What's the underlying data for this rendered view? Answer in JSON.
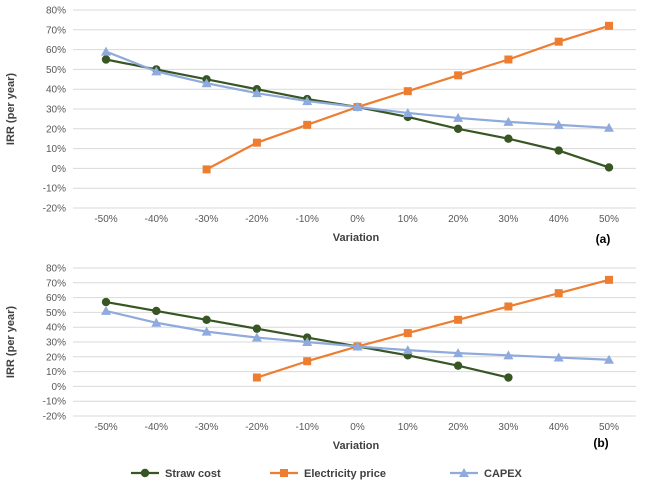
{
  "chart_data": [
    {
      "type": "line",
      "panel_label": "(a)",
      "xlabel": "Variation",
      "ylabel": "IRR (per year)",
      "categories": [
        "-50%",
        "-40%",
        "-30%",
        "-20%",
        "-10%",
        "0%",
        "10%",
        "20%",
        "30%",
        "40%",
        "50%"
      ],
      "ylim": [
        -20,
        80
      ],
      "y_ticks": [
        "-20%",
        "-10%",
        "0%",
        "10%",
        "20%",
        "30%",
        "40%",
        "50%",
        "60%",
        "70%",
        "80%"
      ],
      "grid": true,
      "series": [
        {
          "name": "Straw cost",
          "color": "#375623",
          "marker": "circle",
          "values": [
            55,
            50,
            45,
            40,
            35,
            31,
            26,
            20,
            15,
            9,
            0.5
          ]
        },
        {
          "name": "Electricity price",
          "color": "#ED7D31",
          "marker": "square",
          "values": [
            null,
            null,
            -0.5,
            13,
            22,
            31,
            39,
            47,
            55,
            64,
            72
          ]
        },
        {
          "name": "CAPEX",
          "color": "#8FAADC",
          "marker": "triangle",
          "values": [
            59,
            49,
            43,
            38,
            34,
            31,
            28,
            25.5,
            23.5,
            22,
            20.5
          ]
        }
      ]
    },
    {
      "type": "line",
      "panel_label": "(b)",
      "xlabel": "Variation",
      "ylabel": "IRR (per year)",
      "categories": [
        "-50%",
        "-40%",
        "-30%",
        "-20%",
        "-10%",
        "0%",
        "10%",
        "20%",
        "30%",
        "40%",
        "50%"
      ],
      "ylim": [
        -20,
        80
      ],
      "y_ticks": [
        "-20%",
        "-10%",
        "0%",
        "10%",
        "20%",
        "30%",
        "40%",
        "50%",
        "60%",
        "70%",
        "80%"
      ],
      "grid": true,
      "series": [
        {
          "name": "Straw cost",
          "color": "#375623",
          "marker": "circle",
          "values": [
            57,
            51,
            45,
            39,
            33,
            27,
            21,
            14,
            6,
            null,
            null
          ]
        },
        {
          "name": "Electricity price",
          "color": "#ED7D31",
          "marker": "square",
          "values": [
            null,
            null,
            null,
            6,
            17,
            27,
            36,
            45,
            54,
            63,
            72
          ]
        },
        {
          "name": "CAPEX",
          "color": "#8FAADC",
          "marker": "triangle",
          "values": [
            51,
            43,
            37,
            33,
            30,
            27,
            24.5,
            22.5,
            21,
            19.5,
            18
          ]
        }
      ]
    }
  ],
  "legend": {
    "placement": "bottom",
    "items": [
      {
        "label": "Straw cost",
        "color": "#375623",
        "marker": "circle"
      },
      {
        "label": "Electricity price",
        "color": "#ED7D31",
        "marker": "square"
      },
      {
        "label": "CAPEX",
        "color": "#8FAADC",
        "marker": "triangle"
      }
    ]
  }
}
